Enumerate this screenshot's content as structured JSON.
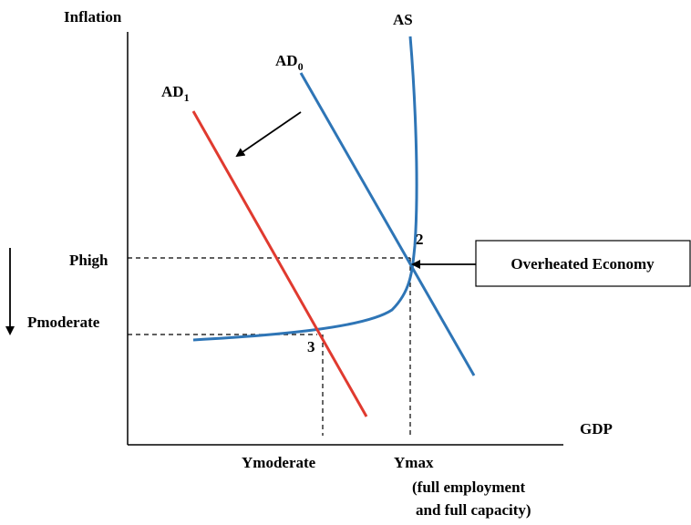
{
  "axes": {
    "y_label": "Inflation",
    "x_label": "GDP"
  },
  "curves": [
    {
      "label": "AS"
    },
    {
      "label": "AD",
      "subscript": "0"
    },
    {
      "label": "AD",
      "subscript": "1"
    }
  ],
  "points": [
    "2",
    "3"
  ],
  "price_levels": [
    "Phigh",
    "Pmoderate"
  ],
  "output_levels": [
    {
      "label": "Ymoderate"
    },
    {
      "label": "Ymax",
      "note": [
        "(full employment",
        "and full capacity)"
      ]
    }
  ],
  "callout": "Overheated Economy"
}
